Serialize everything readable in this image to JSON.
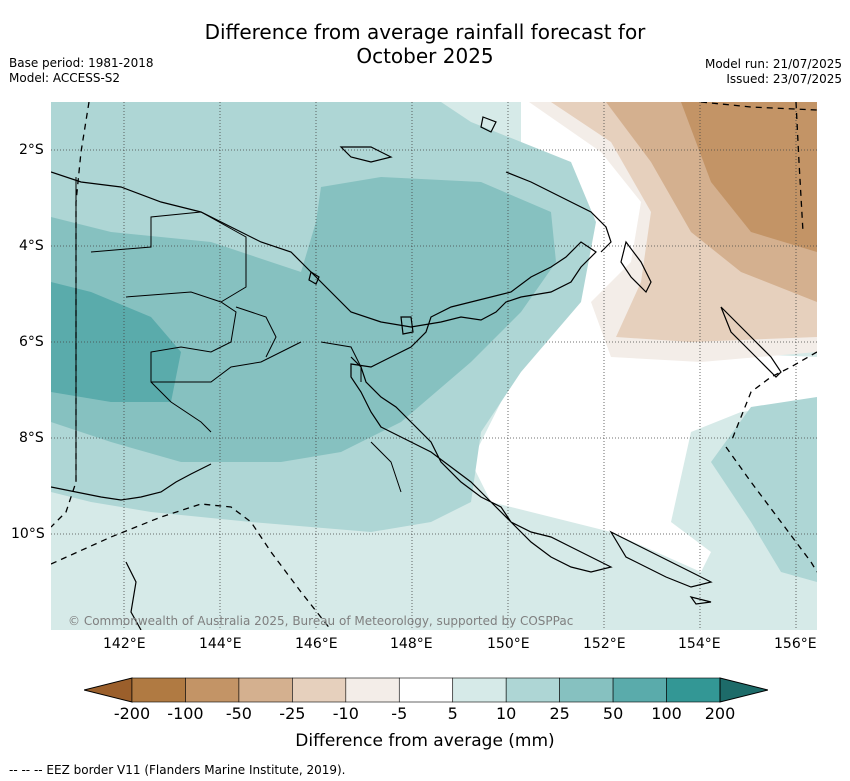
{
  "title_line1": "Difference from average rainfall forecast for",
  "title_line2": "October 2025",
  "meta_left": {
    "base_period": "Base period: 1981-2018",
    "model": "Model: ACCESS-S2"
  },
  "meta_right": {
    "model_run": "Model run: 21/07/2025",
    "issued": "Issued: 23/07/2025"
  },
  "longitude_ticks": [
    "142°E",
    "144°E",
    "146°E",
    "148°E",
    "150°E",
    "152°E",
    "154°E",
    "156°E"
  ],
  "latitude_ticks": [
    "2°S",
    "4°S",
    "6°S",
    "8°S",
    "10°S"
  ],
  "credit": "© Commonwealth of Australia 2025, Bureau of Meteorology, supported by COSPPac",
  "colorbar": {
    "title": "Difference from average (mm)",
    "labels": [
      "-200",
      "-100",
      "-50",
      "-25",
      "-10",
      "-5",
      "5",
      "10",
      "25",
      "50",
      "100",
      "200"
    ],
    "colors": [
      "#9b5f2b",
      "#b07a42",
      "#c39466",
      "#d4b08f",
      "#e6d0bd",
      "#f3ede8",
      "#ffffff",
      "#d6eae8",
      "#aed6d5",
      "#86c1c0",
      "#5aabab",
      "#339795",
      "#1d6b69"
    ]
  },
  "footnote": "-- -- -- EEZ border V11 (Flanders Marine Institute, 2019)."
}
